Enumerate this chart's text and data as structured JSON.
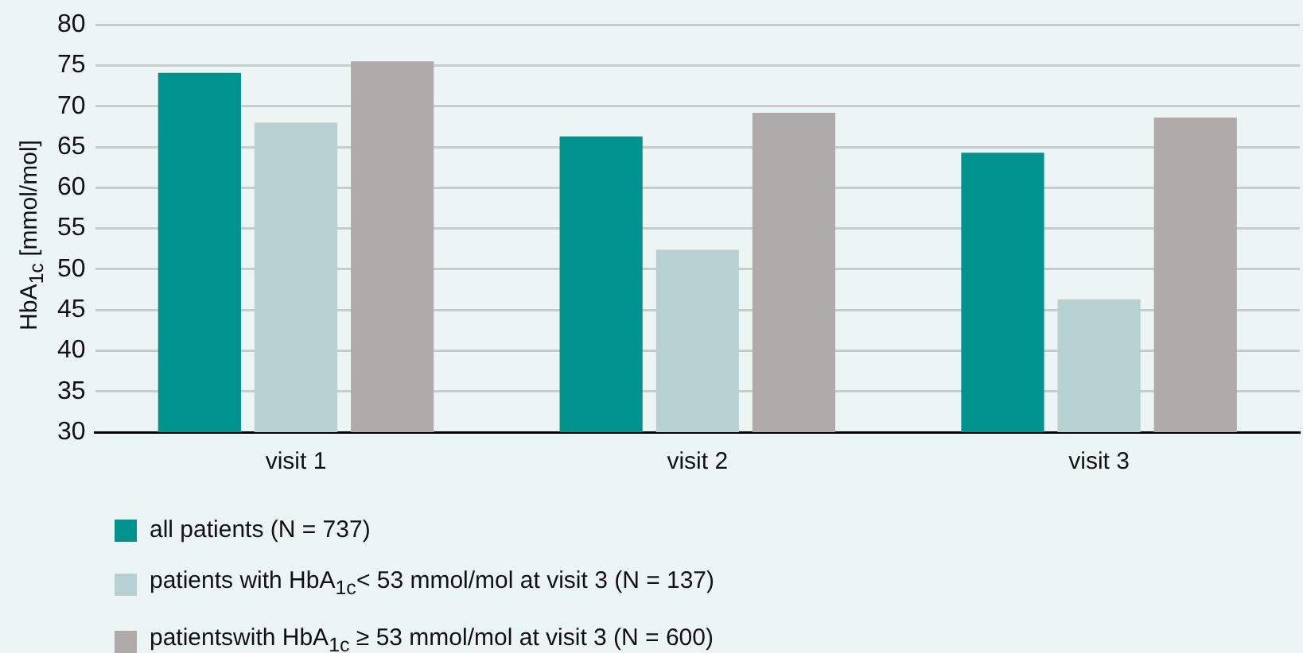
{
  "chart_data": {
    "type": "bar",
    "ylabel": "HbA$_{1c}$ [mmol/mol]",
    "categories": [
      "visit 1",
      "visit 2",
      "visit 3"
    ],
    "series": [
      {
        "name": "all patients (N = 737)",
        "color": "#00928d",
        "values": [
          74.1,
          66.3,
          64.3
        ]
      },
      {
        "name": "patients with HbA$_{1c}$< 53 mmol/mol at visit 3 (N = 137)",
        "color": "#b7d1d2",
        "values": [
          68.0,
          52.4,
          46.3
        ]
      },
      {
        "name": "patientswith HbA$_{1c}$ ≥ 53 mmol/mol at visit 3 (N = 600)",
        "color": "#afabaa",
        "values": [
          75.5,
          69.2,
          68.6
        ]
      }
    ],
    "ylim": [
      30,
      80
    ],
    "yticks": [
      30,
      35,
      40,
      45,
      50,
      55,
      60,
      65,
      70,
      75,
      80
    ],
    "grid": "y",
    "legend": "bottom left"
  }
}
